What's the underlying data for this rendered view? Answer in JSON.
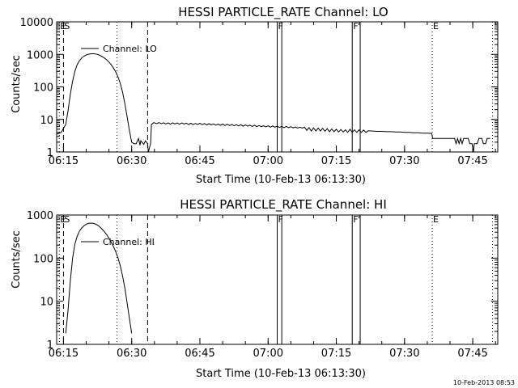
{
  "footer_timestamp": "10-Feb-2013 08:53",
  "chart_data": [
    {
      "type": "line",
      "title": "HESSI PARTICLE_RATE Channel: LO",
      "xlabel": "Start Time (10-Feb-13 06:13:30)",
      "ylabel": "Counts/sec",
      "yscale": "log",
      "ylim": [
        1,
        10000
      ],
      "xlim": [
        "06:13:30",
        "07:50:30"
      ],
      "x_ticks": [
        "06:15",
        "06:30",
        "06:45",
        "07:00",
        "07:15",
        "07:30",
        "07:45"
      ],
      "y_ticks": [
        "1",
        "10",
        "100",
        "1000",
        "10000"
      ],
      "legend": {
        "label": "Channel: LO",
        "placement": "top-left"
      },
      "series": [
        {
          "name": "Channel: LO",
          "points": [
            [
              "06:13:30",
              3.5
            ],
            [
              "06:14:30",
              4.0
            ],
            [
              "06:15:30",
              7.0
            ],
            [
              "06:16:00",
              18
            ],
            [
              "06:16:30",
              60
            ],
            [
              "06:17:00",
              150
            ],
            [
              "06:17:30",
              300
            ],
            [
              "06:18:00",
              480
            ],
            [
              "06:18:30",
              640
            ],
            [
              "06:19:00",
              770
            ],
            [
              "06:19:30",
              880
            ],
            [
              "06:20:00",
              960
            ],
            [
              "06:20:30",
              1010
            ],
            [
              "06:21:00",
              1040
            ],
            [
              "06:21:30",
              1050
            ],
            [
              "06:22:00",
              1030
            ],
            [
              "06:22:30",
              990
            ],
            [
              "06:23:00",
              930
            ],
            [
              "06:23:30",
              860
            ],
            [
              "06:24:00",
              770
            ],
            [
              "06:24:30",
              680
            ],
            [
              "06:25:00",
              580
            ],
            [
              "06:25:30",
              480
            ],
            [
              "06:26:00",
              380
            ],
            [
              "06:26:30",
              290
            ],
            [
              "06:27:00",
              200
            ],
            [
              "06:27:30",
              125
            ],
            [
              "06:28:00",
              68
            ],
            [
              "06:28:30",
              30
            ],
            [
              "06:29:00",
              12
            ],
            [
              "06:29:30",
              4.5
            ],
            [
              "06:30:00",
              2.0
            ],
            [
              "06:30:30",
              1.8
            ],
            [
              "06:31:00",
              1.8
            ],
            [
              "06:31:30",
              2.6
            ],
            [
              "06:31:50",
              1.6
            ],
            [
              "06:32:00",
              2.2
            ],
            [
              "06:32:40",
              1.7
            ],
            [
              "06:33:00",
              2.2
            ],
            [
              "06:33:30",
              1.8
            ],
            [
              "06:33:40",
              1.0
            ],
            [
              "06:34:10",
              1.8
            ],
            [
              "06:34:20",
              7.0
            ],
            [
              "06:34:50",
              8.0
            ],
            [
              "06:35:30",
              7.4
            ],
            [
              "06:36:00",
              8.0
            ],
            [
              "06:36:30",
              7.4
            ],
            [
              "06:37:00",
              7.9
            ],
            [
              "06:37:30",
              7.3
            ],
            [
              "06:38:00",
              7.8
            ],
            [
              "06:38:30",
              7.2
            ],
            [
              "06:39:00",
              7.9
            ],
            [
              "06:39:30",
              7.3
            ],
            [
              "06:40:00",
              7.8
            ],
            [
              "06:40:30",
              7.1
            ],
            [
              "06:41:00",
              7.8
            ],
            [
              "06:41:30",
              7.2
            ],
            [
              "06:42:00",
              7.7
            ],
            [
              "06:42:30",
              7.0
            ],
            [
              "06:43:00",
              7.6
            ],
            [
              "06:43:30",
              7.0
            ],
            [
              "06:44:00",
              7.5
            ],
            [
              "06:44:30",
              7.0
            ],
            [
              "06:45:00",
              7.6
            ],
            [
              "06:45:30",
              6.9
            ],
            [
              "06:46:00",
              7.5
            ],
            [
              "06:46:30",
              6.8
            ],
            [
              "06:47:00",
              7.4
            ],
            [
              "06:47:30",
              6.8
            ],
            [
              "06:48:00",
              7.3
            ],
            [
              "06:48:30",
              6.7
            ],
            [
              "06:49:00",
              7.2
            ],
            [
              "06:49:30",
              6.6
            ],
            [
              "06:50:00",
              7.2
            ],
            [
              "06:50:30",
              6.5
            ],
            [
              "06:51:00",
              7.1
            ],
            [
              "06:51:30",
              6.5
            ],
            [
              "06:52:00",
              7.0
            ],
            [
              "06:52:30",
              6.4
            ],
            [
              "06:53:00",
              6.9
            ],
            [
              "06:53:30",
              6.3
            ],
            [
              "06:54:00",
              6.9
            ],
            [
              "06:54:30",
              6.2
            ],
            [
              "06:55:00",
              6.8
            ],
            [
              "06:55:30",
              6.2
            ],
            [
              "06:56:00",
              6.7
            ],
            [
              "06:56:30",
              6.1
            ],
            [
              "06:57:00",
              6.6
            ],
            [
              "06:57:30",
              6.0
            ],
            [
              "06:58:00",
              6.5
            ],
            [
              "06:58:30",
              6.0
            ],
            [
              "06:59:00",
              6.4
            ],
            [
              "06:59:30",
              5.9
            ],
            [
              "07:00:00",
              6.4
            ],
            [
              "07:00:30",
              5.8
            ],
            [
              "07:01:00",
              6.3
            ],
            [
              "07:01:30",
              5.8
            ],
            [
              "07:02:00",
              6.2
            ],
            [
              "07:02:30",
              5.7
            ],
            [
              "07:03:00",
              6.1
            ],
            [
              "07:03:30",
              5.6
            ],
            [
              "07:04:00",
              6.1
            ],
            [
              "07:04:30",
              5.6
            ],
            [
              "07:05:00",
              6.0
            ],
            [
              "07:05:30",
              5.5
            ],
            [
              "07:06:00",
              5.9
            ],
            [
              "07:06:30",
              5.4
            ],
            [
              "07:07:00",
              5.8
            ],
            [
              "07:07:30",
              5.4
            ],
            [
              "07:08:00",
              5.8
            ],
            [
              "07:08:30",
              4.6
            ],
            [
              "07:09:00",
              5.6
            ],
            [
              "07:09:30",
              4.4
            ],
            [
              "07:10:00",
              5.5
            ],
            [
              "07:10:30",
              4.4
            ],
            [
              "07:11:00",
              5.4
            ],
            [
              "07:11:30",
              4.4
            ],
            [
              "07:12:00",
              5.3
            ],
            [
              "07:12:30",
              4.3
            ],
            [
              "07:13:00",
              5.2
            ],
            [
              "07:13:30",
              4.2
            ],
            [
              "07:14:00",
              5.1
            ],
            [
              "07:14:30",
              4.2
            ],
            [
              "07:15:00",
              5.0
            ],
            [
              "07:15:30",
              4.1
            ],
            [
              "07:16:00",
              4.9
            ],
            [
              "07:16:30",
              4.1
            ],
            [
              "07:17:00",
              4.8
            ],
            [
              "07:17:30",
              4.0
            ],
            [
              "07:18:00",
              5.0
            ],
            [
              "07:18:30",
              4.0
            ],
            [
              "07:19:00",
              4.8
            ],
            [
              "07:19:30",
              4.0
            ],
            [
              "07:20:00",
              4.8
            ],
            [
              "07:20:30",
              4.0
            ],
            [
              "07:21:00",
              4.7
            ],
            [
              "07:21:30",
              4.0
            ],
            [
              "07:22:00",
              4.5
            ],
            [
              "07:23:00",
              4.4
            ],
            [
              "07:24:00",
              4.3
            ],
            [
              "07:25:00",
              4.3
            ],
            [
              "07:26:00",
              4.2
            ],
            [
              "07:27:00",
              4.2
            ],
            [
              "07:28:00",
              4.1
            ],
            [
              "07:29:00",
              4.1
            ],
            [
              "07:30:00",
              4.0
            ],
            [
              "07:31:00",
              4.0
            ],
            [
              "07:32:00",
              3.9
            ],
            [
              "07:33:00",
              3.9
            ],
            [
              "07:34:00",
              3.8
            ],
            [
              "07:35:00",
              3.8
            ],
            [
              "07:36:00",
              3.7
            ],
            [
              "07:36:10",
              2.6
            ],
            [
              "07:38:00",
              2.6
            ],
            [
              "07:40:00",
              2.6
            ],
            [
              "07:41:00",
              2.6
            ],
            [
              "07:41:20",
              1.8
            ],
            [
              "07:41:40",
              2.6
            ],
            [
              "07:42:00",
              1.8
            ],
            [
              "07:42:20",
              2.6
            ],
            [
              "07:42:40",
              1.8
            ],
            [
              "07:43:00",
              2.6
            ],
            [
              "07:44:00",
              2.6
            ],
            [
              "07:44:20",
              1.8
            ],
            [
              "07:44:50",
              1.8
            ],
            [
              "07:45:10",
              1.0
            ],
            [
              "07:45:20",
              1.8
            ],
            [
              "07:46:00",
              1.8
            ],
            [
              "07:46:20",
              2.6
            ],
            [
              "07:47:00",
              2.6
            ],
            [
              "07:47:20",
              1.8
            ],
            [
              "07:47:50",
              1.8
            ],
            [
              "07:48:10",
              2.6
            ],
            [
              "07:48:50",
              2.6
            ]
          ]
        }
      ],
      "markers": [
        {
          "label": "E",
          "time": "06:14:05",
          "style": "dotted"
        },
        {
          "label": "S",
          "time": "06:15:00",
          "style": "dashed"
        },
        {
          "label": "",
          "time": "06:26:45",
          "style": "dotted"
        },
        {
          "label": "",
          "time": "06:33:30",
          "style": "dashed"
        },
        {
          "label": "F",
          "time": "07:02:00",
          "style": "solid"
        },
        {
          "label": "",
          "time": "07:03:00",
          "style": "solid"
        },
        {
          "label": "F",
          "time": "07:18:30",
          "style": "solid"
        },
        {
          "label": "",
          "time": "07:20:15",
          "style": "solid"
        },
        {
          "label": "E",
          "time": "07:36:05",
          "style": "dotted"
        },
        {
          "label": "",
          "time": "07:49:20",
          "style": "dotted"
        }
      ]
    },
    {
      "type": "line",
      "title": "HESSI PARTICLE_RATE Channel: HI",
      "xlabel": "Start Time (10-Feb-13 06:13:30)",
      "ylabel": "Counts/sec",
      "yscale": "log",
      "ylim": [
        1,
        1000
      ],
      "xlim": [
        "06:13:30",
        "07:50:30"
      ],
      "x_ticks": [
        "06:15",
        "06:30",
        "06:45",
        "07:00",
        "07:15",
        "07:30",
        "07:45"
      ],
      "y_ticks": [
        "1",
        "10",
        "100",
        "1000"
      ],
      "legend": {
        "label": "Channel: HI",
        "placement": "top-left"
      },
      "series": [
        {
          "name": "Channel: HI",
          "points": [
            [
              "06:15:30",
              1.8
            ],
            [
              "06:16:00",
              6.0
            ],
            [
              "06:16:30",
              30
            ],
            [
              "06:17:00",
              100
            ],
            [
              "06:17:30",
              210
            ],
            [
              "06:18:00",
              320
            ],
            [
              "06:18:30",
              420
            ],
            [
              "06:19:00",
              500
            ],
            [
              "06:19:30",
              560
            ],
            [
              "06:20:00",
              610
            ],
            [
              "06:20:30",
              640
            ],
            [
              "06:21:00",
              650
            ],
            [
              "06:21:30",
              640
            ],
            [
              "06:22:00",
              620
            ],
            [
              "06:22:30",
              580
            ],
            [
              "06:23:00",
              530
            ],
            [
              "06:23:30",
              470
            ],
            [
              "06:24:00",
              410
            ],
            [
              "06:24:30",
              350
            ],
            [
              "06:25:00",
              290
            ],
            [
              "06:25:30",
              235
            ],
            [
              "06:26:00",
              185
            ],
            [
              "06:26:30",
              140
            ],
            [
              "06:27:00",
              100
            ],
            [
              "06:27:30",
              65
            ],
            [
              "06:28:00",
              38
            ],
            [
              "06:28:30",
              20
            ],
            [
              "06:29:00",
              9.0
            ],
            [
              "06:29:30",
              4.0
            ],
            [
              "06:30:00",
              1.8
            ]
          ]
        }
      ],
      "markers": [
        {
          "label": "E",
          "time": "06:14:05",
          "style": "dotted"
        },
        {
          "label": "S",
          "time": "06:15:00",
          "style": "dashed"
        },
        {
          "label": "",
          "time": "06:26:45",
          "style": "dotted"
        },
        {
          "label": "",
          "time": "06:33:30",
          "style": "dashed"
        },
        {
          "label": "F",
          "time": "07:02:00",
          "style": "solid"
        },
        {
          "label": "",
          "time": "07:03:00",
          "style": "solid"
        },
        {
          "label": "F",
          "time": "07:18:30",
          "style": "solid"
        },
        {
          "label": "",
          "time": "07:20:15",
          "style": "solid"
        },
        {
          "label": "E",
          "time": "07:36:05",
          "style": "dotted"
        },
        {
          "label": "",
          "time": "07:49:20",
          "style": "dotted"
        }
      ]
    }
  ]
}
